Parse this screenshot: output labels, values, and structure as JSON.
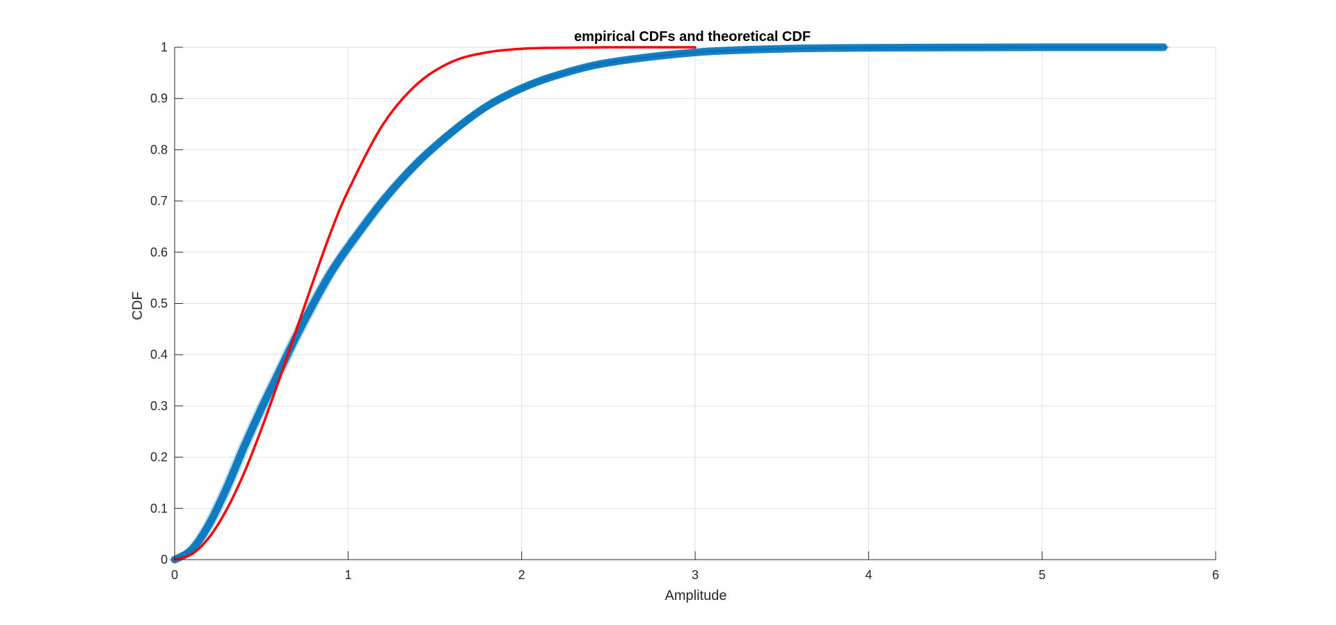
{
  "chart_data": {
    "type": "line",
    "title": "empirical CDFs and theoretical CDF",
    "xlabel": "Amplitude",
    "ylabel": "CDF",
    "xlim": [
      0,
      6
    ],
    "ylim": [
      0,
      1
    ],
    "xticks": [
      0,
      1,
      2,
      3,
      4,
      5,
      6
    ],
    "yticks": [
      0,
      0.1,
      0.2,
      0.3,
      0.4,
      0.5,
      0.6,
      0.7,
      0.8,
      0.9,
      1
    ],
    "xtick_labels": [
      "0",
      "1",
      "2",
      "3",
      "4",
      "5",
      "6"
    ],
    "ytick_labels": [
      "0",
      "0.1",
      "0.2",
      "0.3",
      "0.4",
      "0.5",
      "0.6",
      "0.7",
      "0.8",
      "0.9",
      "1"
    ],
    "grid": true,
    "legend": "none",
    "series": [
      {
        "role": "empirical",
        "color": "#0072BD",
        "x": [
          0,
          0.1,
          0.2,
          0.3,
          0.4,
          0.5,
          0.6,
          0.7,
          0.8,
          0.9,
          1.0,
          1.2,
          1.4,
          1.6,
          1.8,
          2.0,
          2.2,
          2.5,
          3.0,
          3.5,
          4.0,
          5.0,
          5.7
        ],
        "y": [
          0,
          0.02,
          0.07,
          0.14,
          0.22,
          0.295,
          0.365,
          0.435,
          0.5,
          0.56,
          0.61,
          0.7,
          0.775,
          0.835,
          0.885,
          0.92,
          0.945,
          0.97,
          0.99,
          0.997,
          0.999,
          1.0,
          1.0
        ]
      },
      {
        "role": "theoretical",
        "color": "#FF0000",
        "x": [
          0,
          0.1,
          0.2,
          0.3,
          0.4,
          0.5,
          0.6,
          0.7,
          0.8,
          0.9,
          1.0,
          1.2,
          1.4,
          1.6,
          1.8,
          2.0,
          2.2,
          2.5,
          3.0
        ],
        "y": [
          0,
          0.011,
          0.044,
          0.098,
          0.169,
          0.255,
          0.349,
          0.447,
          0.545,
          0.639,
          0.72,
          0.849,
          0.929,
          0.972,
          0.99,
          0.997,
          0.999,
          1.0,
          1.0
        ]
      }
    ]
  }
}
